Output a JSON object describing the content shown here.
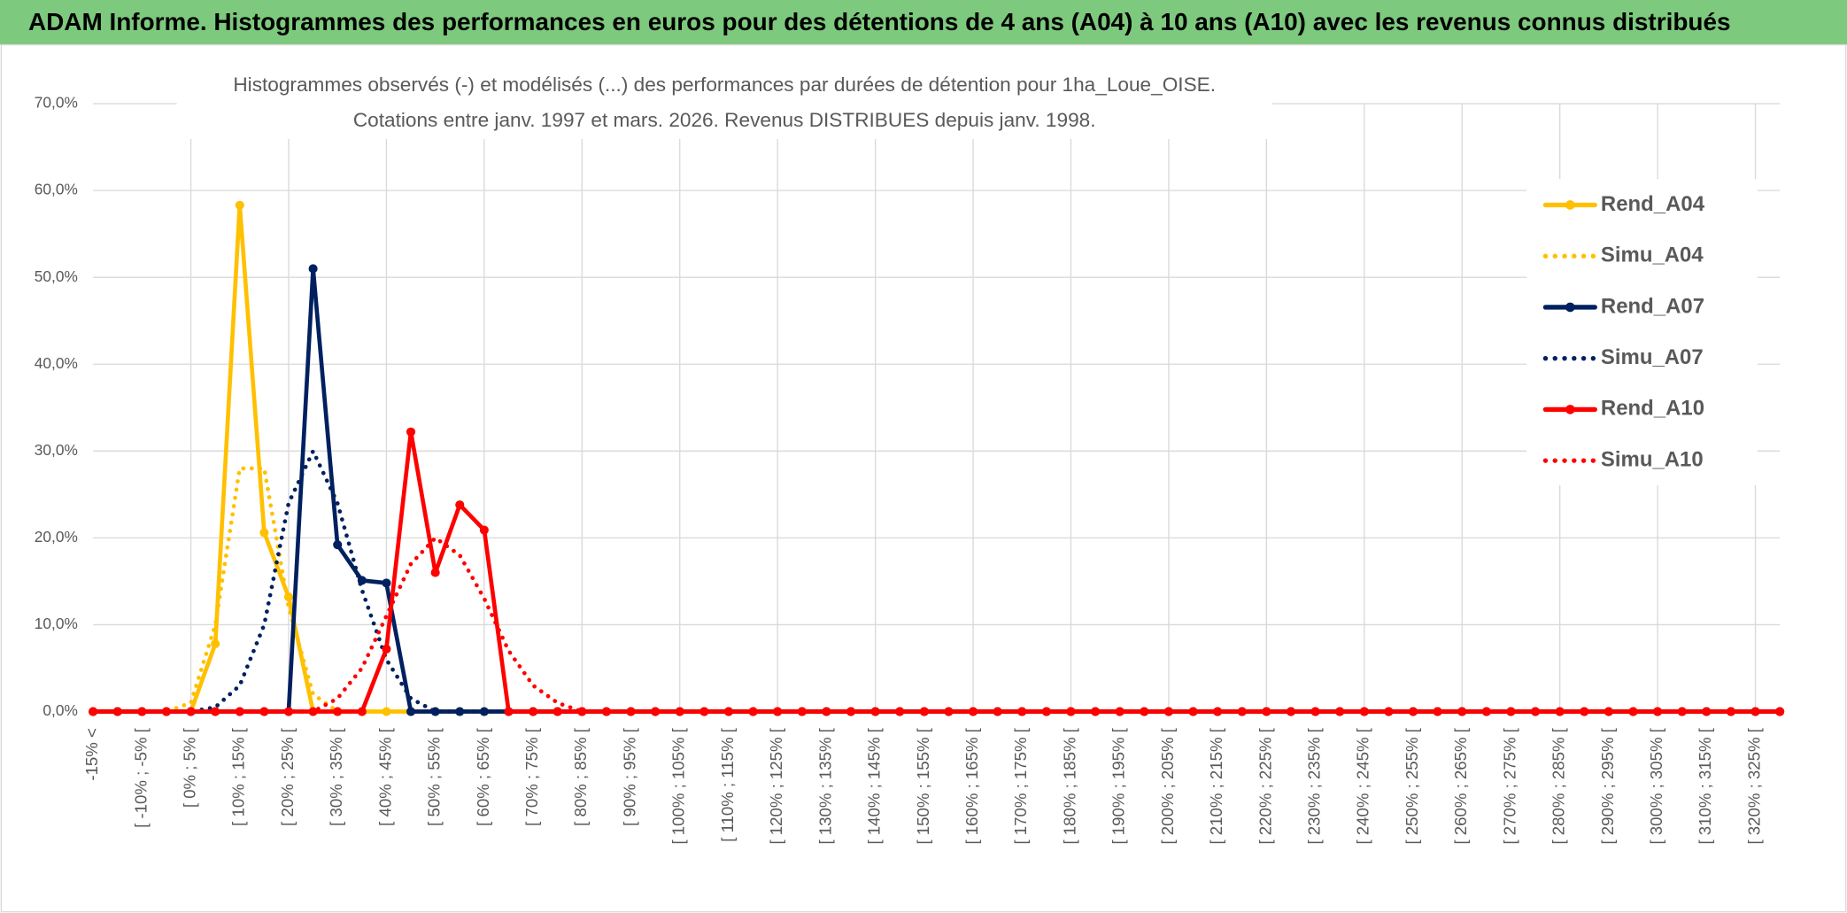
{
  "chart_data": {
    "type": "line",
    "header": "ADAM Informe. Histogrammes des performances en euros pour des détentions de 4 ans (A04) à 10 ans (A10) avec les revenus connus distribués",
    "title": "Histogrammes observés (-) et modélisés (...) des performances par durées de détention pour 1ha_Loue_OISE.",
    "subtitle": "Cotations entre janv. 1997 et mars. 2026. Revenus DISTRIBUES depuis janv. 1998.",
    "categories": [
      "-15% <",
      null,
      "[ -10% ; -5% [",
      null,
      "[ 0% ; 5% [",
      null,
      "[ 10% ; 15% [",
      null,
      "[ 20% ; 25% [",
      null,
      "[ 30% ; 35% [",
      null,
      "[ 40% ; 45% [",
      null,
      "[ 50% ; 55% [",
      null,
      "[ 60% ; 65% [",
      null,
      "[ 70% ; 75% [",
      null,
      "[ 80% ; 85% [",
      null,
      "[ 90% ; 95% [",
      null,
      "[ 100% ; 105% [",
      null,
      "[ 110% ; 115% [",
      null,
      "[ 120% ; 125% [",
      null,
      "[ 130% ; 135% [",
      null,
      "[ 140% ; 145% [",
      null,
      "[ 150% ; 155% [",
      null,
      "[ 160% ; 165% [",
      null,
      "[ 170% ; 175% [",
      null,
      "[ 180% ; 185% [",
      null,
      "[ 190% ; 195% [",
      null,
      "[ 200% ; 205% [",
      null,
      "[ 210% ; 215% [",
      null,
      "[ 220% ; 225% [",
      null,
      "[ 230% ; 235% [",
      null,
      "[ 240% ; 245% [",
      null,
      "[ 250% ; 255% [",
      null,
      "[ 260% ; 265% [",
      null,
      "[ 270% ; 275% [",
      null,
      "[ 280% ; 285% [",
      null,
      "[ 290% ; 295% [",
      null,
      "[ 300% ; 305% [",
      null,
      "[ 310% ; 315% [",
      null,
      "[ 320% ; 325% [",
      null
    ],
    "series": [
      {
        "name": "Rend_A04",
        "color": "#ffc000",
        "dashed": false,
        "values": [
          0,
          0,
          0,
          0,
          0,
          7.8,
          58.3,
          20.6,
          13.2,
          0,
          0,
          0,
          0,
          0,
          0,
          0,
          0,
          0,
          0,
          0,
          0,
          0,
          0,
          0,
          0,
          0,
          0,
          0,
          0,
          0,
          0,
          0,
          0,
          0,
          0,
          0,
          0,
          0,
          0,
          0,
          0,
          0,
          0,
          0,
          0,
          0,
          0,
          0,
          0,
          0,
          0,
          0,
          0,
          0,
          0,
          0,
          0,
          0,
          0,
          0,
          0,
          0,
          0,
          0,
          0,
          0,
          0,
          0,
          0,
          0
        ]
      },
      {
        "name": "Simu_A04",
        "color": "#ffc000",
        "dashed": true,
        "values": [
          0,
          0,
          0,
          0,
          1,
          10,
          28,
          28,
          12,
          2,
          0,
          0,
          0,
          0,
          0,
          0,
          0,
          0,
          0,
          0,
          0,
          0,
          0,
          0,
          0,
          0,
          0,
          0,
          0,
          0,
          0,
          0,
          0,
          0,
          0,
          0,
          0,
          0,
          0,
          0,
          0,
          0,
          0,
          0,
          0,
          0,
          0,
          0,
          0,
          0,
          0,
          0,
          0,
          0,
          0,
          0,
          0,
          0,
          0,
          0,
          0,
          0,
          0,
          0,
          0,
          0,
          0,
          0,
          0,
          0
        ]
      },
      {
        "name": "Rend_A07",
        "color": "#002060",
        "dashed": false,
        "values": [
          0,
          0,
          0,
          0,
          0,
          0,
          0,
          0,
          0,
          51.0,
          19.2,
          15.1,
          14.8,
          0,
          0,
          0,
          0,
          0,
          0,
          0,
          0,
          0,
          0,
          0,
          0,
          0,
          0,
          0,
          0,
          0,
          0,
          0,
          0,
          0,
          0,
          0,
          0,
          0,
          0,
          0,
          0,
          0,
          0,
          0,
          0,
          0,
          0,
          0,
          0,
          0,
          0,
          0,
          0,
          0,
          0,
          0,
          0,
          0,
          0,
          0,
          0,
          0,
          0,
          0,
          0,
          0,
          0,
          0,
          0,
          0
        ]
      },
      {
        "name": "Simu_A07",
        "color": "#002060",
        "dashed": true,
        "values": [
          0,
          0,
          0,
          0,
          0,
          0.5,
          3,
          10,
          24,
          30,
          24,
          14,
          6,
          1.5,
          0,
          0,
          0,
          0,
          0,
          0,
          0,
          0,
          0,
          0,
          0,
          0,
          0,
          0,
          0,
          0,
          0,
          0,
          0,
          0,
          0,
          0,
          0,
          0,
          0,
          0,
          0,
          0,
          0,
          0,
          0,
          0,
          0,
          0,
          0,
          0,
          0,
          0,
          0,
          0,
          0,
          0,
          0,
          0,
          0,
          0,
          0,
          0,
          0,
          0,
          0,
          0,
          0,
          0,
          0,
          0
        ]
      },
      {
        "name": "Rend_A10",
        "color": "#ff0000",
        "dashed": false,
        "values": [
          0,
          0,
          0,
          0,
          0,
          0,
          0,
          0,
          0,
          0,
          0,
          0,
          7.2,
          32.2,
          16.0,
          23.8,
          20.9,
          0,
          0,
          0,
          0,
          0,
          0,
          0,
          0,
          0,
          0,
          0,
          0,
          0,
          0,
          0,
          0,
          0,
          0,
          0,
          0,
          0,
          0,
          0,
          0,
          0,
          0,
          0,
          0,
          0,
          0,
          0,
          0,
          0,
          0,
          0,
          0,
          0,
          0,
          0,
          0,
          0,
          0,
          0,
          0,
          0,
          0,
          0,
          0,
          0,
          0,
          0,
          0,
          0
        ]
      },
      {
        "name": "Simu_A10",
        "color": "#ff0000",
        "dashed": true,
        "values": [
          0,
          0,
          0,
          0,
          0,
          0,
          0,
          0,
          0,
          0,
          1.5,
          5,
          11,
          17,
          20,
          18,
          13,
          7,
          3,
          1,
          0,
          0,
          0,
          0,
          0,
          0,
          0,
          0,
          0,
          0,
          0,
          0,
          0,
          0,
          0,
          0,
          0,
          0,
          0,
          0,
          0,
          0,
          0,
          0,
          0,
          0,
          0,
          0,
          0,
          0,
          0,
          0,
          0,
          0,
          0,
          0,
          0,
          0,
          0,
          0,
          0,
          0,
          0,
          0,
          0,
          0,
          0,
          0,
          0,
          0
        ]
      }
    ],
    "ylim": [
      0,
      70
    ],
    "yticks": [
      {
        "value": 0,
        "label": "0,0%"
      },
      {
        "value": 10,
        "label": "10,0%"
      },
      {
        "value": 20,
        "label": "20,0%"
      },
      {
        "value": 30,
        "label": "30,0%"
      },
      {
        "value": 40,
        "label": "40,0%"
      },
      {
        "value": 50,
        "label": "50,0%"
      },
      {
        "value": 60,
        "label": "60,0%"
      },
      {
        "value": 70,
        "label": "70,0%"
      }
    ],
    "grid": true,
    "legend": "right"
  }
}
